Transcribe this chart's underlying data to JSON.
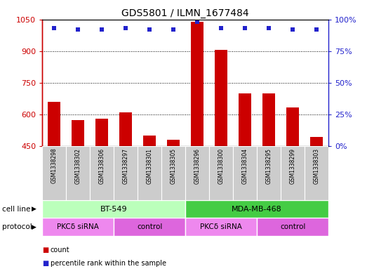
{
  "title": "GDS5801 / ILMN_1677484",
  "samples": [
    "GSM1338298",
    "GSM1338302",
    "GSM1338306",
    "GSM1338297",
    "GSM1338301",
    "GSM1338305",
    "GSM1338296",
    "GSM1338300",
    "GSM1338304",
    "GSM1338295",
    "GSM1338299",
    "GSM1338303"
  ],
  "counts": [
    660,
    575,
    580,
    610,
    500,
    480,
    1040,
    905,
    700,
    700,
    635,
    495
  ],
  "percentile_ranks": [
    93,
    92,
    92,
    93,
    92,
    92,
    98,
    93,
    93,
    93,
    92,
    92
  ],
  "ylim_left": [
    450,
    1050
  ],
  "ylim_right": [
    0,
    100
  ],
  "yticks_left": [
    450,
    600,
    750,
    900,
    1050
  ],
  "yticks_right": [
    0,
    25,
    50,
    75,
    100
  ],
  "bar_color": "#cc0000",
  "dot_color": "#2222cc",
  "cell_line_groups": [
    {
      "label": "BT-549",
      "start": 0,
      "end": 6,
      "color": "#bbffbb"
    },
    {
      "label": "MDA-MB-468",
      "start": 6,
      "end": 12,
      "color": "#44cc44"
    }
  ],
  "protocol_groups": [
    {
      "label": "PKCδ siRNA",
      "start": 0,
      "end": 3,
      "color": "#ee88ee"
    },
    {
      "label": "control",
      "start": 3,
      "end": 6,
      "color": "#dd66dd"
    },
    {
      "label": "PKCδ siRNA",
      "start": 6,
      "end": 9,
      "color": "#ee88ee"
    },
    {
      "label": "control",
      "start": 9,
      "end": 12,
      "color": "#dd66dd"
    }
  ],
  "sample_bg_color": "#cccccc",
  "label_cell_line": "cell line",
  "label_protocol": "protocol",
  "legend_count": "count",
  "legend_percentile": "percentile rank within the sample",
  "left_axis_color": "#cc0000",
  "right_axis_color": "#2222cc",
  "grid_yticks": [
    600,
    750,
    900
  ]
}
